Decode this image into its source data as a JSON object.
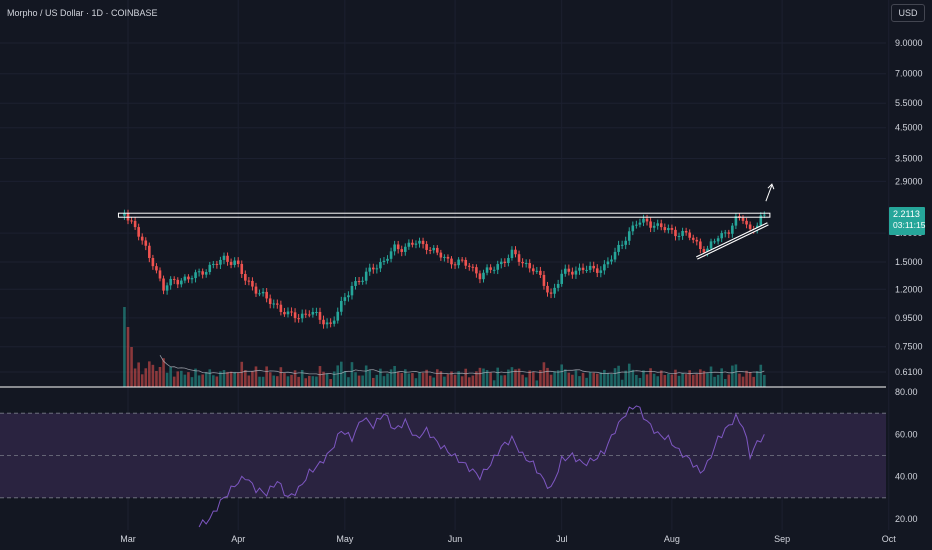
{
  "header": {
    "symbol_title": "Morpho / US Dollar · 1D · COINBASE"
  },
  "currency_button": "USD",
  "price_label": {
    "price": "2.2113",
    "countdown": "03:11:15",
    "color": "#26a69a"
  },
  "colors": {
    "background": "#131722",
    "up": "#26a69a",
    "down": "#ef5350",
    "rsi_line": "#7e57c2",
    "rsi_band": "#2a2340"
  },
  "chart_data": [
    {
      "type": "candlestick",
      "scale": "log",
      "title": "Morpho / US Dollar · 1D · COINBASE",
      "price_axis_ticks": [
        "9.0000",
        "7.0000",
        "5.5000",
        "4.5000",
        "3.5000",
        "2.9000",
        "1.9000",
        "1.5000",
        "1.2000",
        "0.9500",
        "0.7500",
        "0.6100"
      ],
      "time_axis_ticks": [
        "Mar",
        "Apr",
        "May",
        "Jun",
        "Jul",
        "Aug",
        "Sep",
        "Oct"
      ],
      "close_anchors": [
        [
          "Feb 28",
          2.3
        ],
        [
          "Mar 1",
          2.15
        ],
        [
          "Mar 3",
          2.0
        ],
        [
          "Mar 5",
          1.75
        ],
        [
          "Mar 8",
          1.5
        ],
        [
          "Mar 11",
          1.2
        ],
        [
          "Mar 14",
          1.3
        ],
        [
          "Mar 18",
          1.3
        ],
        [
          "Mar 22",
          1.4
        ],
        [
          "Mar 25",
          1.45
        ],
        [
          "Mar 28",
          1.55
        ],
        [
          "Mar 31",
          1.5
        ],
        [
          "Apr 3",
          1.3
        ],
        [
          "Apr 6",
          1.2
        ],
        [
          "Apr 9",
          1.1
        ],
        [
          "Apr 12",
          1.05
        ],
        [
          "Apr 15",
          0.97
        ],
        [
          "Apr 18",
          0.96
        ],
        [
          "Apr 21",
          1.0
        ],
        [
          "Apr 24",
          0.94
        ],
        [
          "Apr 27",
          0.9
        ],
        [
          "Apr 30",
          1.05
        ],
        [
          "May 3",
          1.25
        ],
        [
          "May 6",
          1.3
        ],
        [
          "May 9",
          1.45
        ],
        [
          "May 12",
          1.5
        ],
        [
          "May 15",
          1.68
        ],
        [
          "May 18",
          1.7
        ],
        [
          "May 21",
          1.75
        ],
        [
          "May 24",
          1.72
        ],
        [
          "May 27",
          1.6
        ],
        [
          "May 30",
          1.52
        ],
        [
          "Jun 2",
          1.5
        ],
        [
          "Jun 5",
          1.45
        ],
        [
          "Jun 8",
          1.35
        ],
        [
          "Jun 11",
          1.4
        ],
        [
          "Jun 14",
          1.5
        ],
        [
          "Jun 17",
          1.6
        ],
        [
          "Jun 20",
          1.5
        ],
        [
          "Jun 23",
          1.42
        ],
        [
          "Jun 26",
          1.25
        ],
        [
          "Jun 28",
          1.15
        ],
        [
          "Jul 1",
          1.35
        ],
        [
          "Jul 4",
          1.4
        ],
        [
          "Jul 7",
          1.42
        ],
        [
          "Jul 10",
          1.4
        ],
        [
          "Jul 13",
          1.45
        ],
        [
          "Jul 16",
          1.6
        ],
        [
          "Jul 19",
          1.85
        ],
        [
          "Jul 22",
          2.05
        ],
        [
          "Jul 25",
          2.1
        ],
        [
          "Jul 28",
          2.0
        ],
        [
          "Jul 31",
          1.95
        ],
        [
          "Aug 3",
          1.9
        ],
        [
          "Aug 6",
          1.85
        ],
        [
          "Aug 9",
          1.7
        ],
        [
          "Aug 11",
          1.65
        ],
        [
          "Aug 14",
          1.85
        ],
        [
          "Aug 17",
          1.95
        ],
        [
          "Aug 19",
          2.1
        ],
        [
          "Aug 21",
          2.15
        ],
        [
          "Aug 23",
          1.95
        ],
        [
          "Aug 25",
          2.05
        ],
        [
          "Aug 27",
          2.21
        ]
      ],
      "annotations": {
        "resistance_line": 2.2,
        "rising_support_line": {
          "from": [
            "Aug 8",
            1.55
          ],
          "to": [
            "Aug 28",
            2.05
          ]
        },
        "arrow": "up"
      },
      "volume_ma_overlay": true
    },
    {
      "type": "line",
      "indicator": "RSI",
      "ylim": [
        10,
        90
      ],
      "y_ticks": [
        "80.00",
        "60.00",
        "40.00",
        "20.00"
      ],
      "band": [
        30,
        70
      ],
      "midline": 50,
      "values_anchors": [
        [
          "Mar 21",
          17
        ],
        [
          "Mar 24",
          20
        ],
        [
          "Mar 27",
          28
        ],
        [
          "Mar 31",
          36
        ],
        [
          "Apr 3",
          40
        ],
        [
          "Apr 6",
          34
        ],
        [
          "Apr 9",
          32
        ],
        [
          "Apr 12",
          38
        ],
        [
          "Apr 15",
          30
        ],
        [
          "Apr 18",
          34
        ],
        [
          "Apr 21",
          42
        ],
        [
          "Apr 24",
          46
        ],
        [
          "Apr 27",
          52
        ],
        [
          "Apr 30",
          62
        ],
        [
          "May 3",
          58
        ],
        [
          "May 6",
          68
        ],
        [
          "May 9",
          64
        ],
        [
          "May 12",
          70
        ],
        [
          "May 15",
          62
        ],
        [
          "May 18",
          66
        ],
        [
          "May 21",
          58
        ],
        [
          "May 24",
          62
        ],
        [
          "May 27",
          56
        ],
        [
          "May 30",
          52
        ],
        [
          "Jun 2",
          48
        ],
        [
          "Jun 5",
          44
        ],
        [
          "Jun 8",
          40
        ],
        [
          "Jun 11",
          46
        ],
        [
          "Jun 14",
          54
        ],
        [
          "Jun 17",
          58
        ],
        [
          "Jun 20",
          50
        ],
        [
          "Jun 23",
          46
        ],
        [
          "Jun 26",
          38
        ],
        [
          "Jun 28",
          34
        ],
        [
          "Jul 1",
          48
        ],
        [
          "Jul 4",
          50
        ],
        [
          "Jul 7",
          46
        ],
        [
          "Jul 10",
          48
        ],
        [
          "Jul 13",
          52
        ],
        [
          "Jul 16",
          62
        ],
        [
          "Jul 19",
          70
        ],
        [
          "Jul 22",
          74
        ],
        [
          "Jul 25",
          66
        ],
        [
          "Jul 28",
          60
        ],
        [
          "Jul 31",
          58
        ],
        [
          "Aug 3",
          52
        ],
        [
          "Aug 6",
          48
        ],
        [
          "Aug 9",
          42
        ],
        [
          "Aug 11",
          46
        ],
        [
          "Aug 14",
          58
        ],
        [
          "Aug 17",
          64
        ],
        [
          "Aug 19",
          68
        ],
        [
          "Aug 21",
          64
        ],
        [
          "Aug 23",
          50
        ],
        [
          "Aug 25",
          56
        ],
        [
          "Aug 27",
          60
        ]
      ]
    }
  ]
}
